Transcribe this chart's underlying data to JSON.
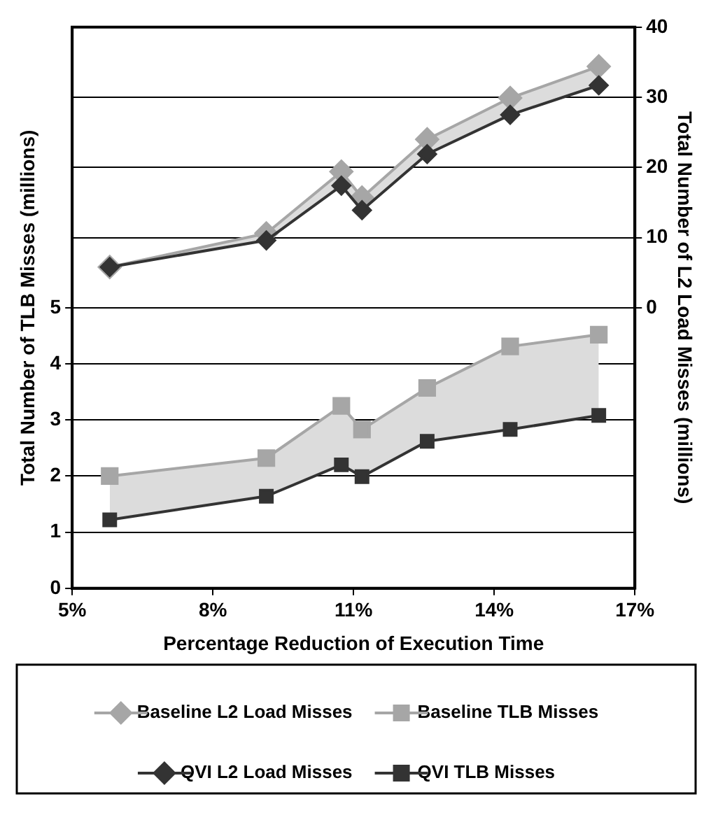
{
  "chart_data": {
    "type": "line",
    "xlabel": "Percentage Reduction of Execution Time",
    "ylabel": "Total Number of TLB Misses (millions)",
    "y2label": "Total Number of L2 Load Misses (millions)",
    "x": [
      5.8,
      9.14,
      10.74,
      11.18,
      12.57,
      14.34,
      16.23
    ],
    "series": [
      {
        "name": "Baseline L2 Load Misses",
        "color": "#a6a6a6",
        "marker": "diamond",
        "axis": "y2",
        "values": [
          5.8,
          10.6,
          19.4,
          15.7,
          24.0,
          29.9,
          34.4
        ],
        "lower": [
          5.8,
          9.6,
          17.4,
          13.9,
          21.9,
          27.5,
          31.7
        ],
        "upper": [
          5.8,
          10.6,
          19.4,
          15.7,
          24.0,
          29.9,
          34.4
        ]
      },
      {
        "name": "Baseline TLB Misses",
        "color": "#a6a6a6",
        "marker": "square",
        "values": [
          2.0,
          2.32,
          3.25,
          2.83,
          3.57,
          4.31,
          4.52
        ],
        "lower": [
          1.22,
          1.64,
          2.2,
          1.99,
          2.62,
          2.83,
          3.08
        ],
        "upper": [
          2.0,
          2.32,
          3.25,
          2.83,
          3.57,
          4.31,
          4.52
        ]
      },
      {
        "name": "QVI L2 Load Misses",
        "color": "#333333",
        "marker": "diamond",
        "axis": "y2",
        "values": [
          5.8,
          9.6,
          17.4,
          13.9,
          21.9,
          27.5,
          31.7
        ]
      },
      {
        "name": "QVI TLB Misses",
        "color": "#333333",
        "marker": "square",
        "values": [
          1.22,
          1.64,
          2.2,
          1.99,
          2.62,
          2.83,
          3.08
        ]
      }
    ],
    "xlim": [
      5,
      17
    ],
    "xticks": [
      {
        "value": 5,
        "label": "5%"
      },
      {
        "value": 8,
        "label": "8%"
      },
      {
        "value": 11,
        "label": "11%"
      },
      {
        "value": 14,
        "label": "14%"
      },
      {
        "value": 17,
        "label": "17%"
      }
    ],
    "ylim": [
      0,
      10
    ],
    "yticks": [
      0,
      1,
      2,
      3,
      4,
      5
    ],
    "y2lim": [
      -40,
      40
    ],
    "y2ticks": [
      0,
      10,
      20,
      30,
      40
    ],
    "grid": true,
    "legend": "bottom"
  }
}
